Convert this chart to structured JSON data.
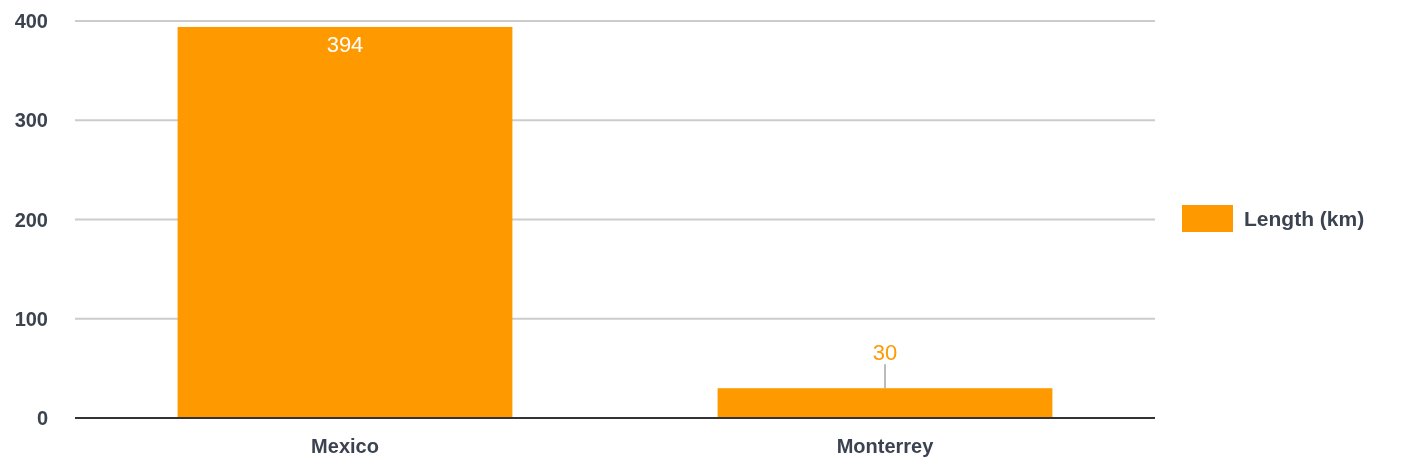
{
  "chart_data": {
    "type": "bar",
    "categories": [
      "Mexico",
      "Monterrey"
    ],
    "series": [
      {
        "name": "Length (km)",
        "color": "#ff9900",
        "values": [
          394,
          30
        ]
      }
    ],
    "ylim": [
      0,
      400
    ],
    "yticks": [
      0,
      100,
      200,
      300,
      400
    ],
    "grid": "y",
    "legend": "right",
    "data_labels": true
  }
}
